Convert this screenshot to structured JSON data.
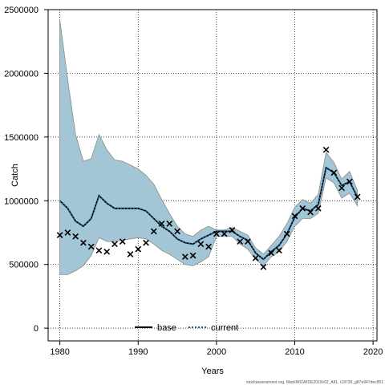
{
  "chart_data": {
    "type": "line",
    "title": "",
    "xlabel": "Years",
    "ylabel": "Catch",
    "xlim": [
      1978.5,
      2020.5
    ],
    "ylim": [
      -100000,
      2500000
    ],
    "x_ticks": [
      1980,
      1990,
      2000,
      2010,
      2020
    ],
    "x_tick_labels": [
      "1980",
      "1990",
      "2000",
      "2010",
      "2020"
    ],
    "y_ticks": [
      0,
      500000,
      1000000,
      1500000,
      2000000,
      2500000
    ],
    "y_tick_labels": [
      "0",
      "500000",
      "1000000",
      "1500000",
      "2000000",
      "2500000"
    ],
    "grid": true,
    "legend": {
      "placement": "bottom",
      "entries": [
        "base",
        "current"
      ]
    },
    "years": [
      1980,
      1981,
      1982,
      1983,
      1984,
      1985,
      1986,
      1987,
      1988,
      1989,
      1990,
      1991,
      1992,
      1993,
      1994,
      1995,
      1996,
      1997,
      1998,
      1999,
      2000,
      2001,
      2002,
      2003,
      2004,
      2005,
      2006,
      2007,
      2008,
      2009,
      2010,
      2011,
      2012,
      2013,
      2014,
      2015,
      2016,
      2017,
      2018
    ],
    "series": [
      {
        "name": "base",
        "color": "#000000",
        "line": "solid",
        "values": [
          1000000,
          940000,
          840000,
          800000,
          860000,
          1040000,
          980000,
          940000,
          940000,
          940000,
          940000,
          920000,
          860000,
          800000,
          760000,
          700000,
          670000,
          660000,
          700000,
          730000,
          760000,
          760000,
          760000,
          720000,
          690000,
          590000,
          540000,
          600000,
          650000,
          740000,
          870000,
          940000,
          920000,
          970000,
          1260000,
          1220000,
          1120000,
          1150000,
          1030000
        ]
      },
      {
        "name": "current",
        "color": "#1f5c8a",
        "line": "dotted",
        "values": [
          1000000,
          940000,
          840000,
          800000,
          860000,
          1040000,
          980000,
          940000,
          940000,
          940000,
          940000,
          920000,
          860000,
          800000,
          760000,
          700000,
          670000,
          660000,
          700000,
          730000,
          760000,
          760000,
          760000,
          720000,
          690000,
          590000,
          540000,
          600000,
          650000,
          740000,
          870000,
          940000,
          920000,
          970000,
          1260000,
          1220000,
          1120000,
          1150000,
          1030000
        ]
      }
    ],
    "interval": {
      "color": "#a3c6d6",
      "upper": [
        2420000,
        1950000,
        1520000,
        1310000,
        1330000,
        1520000,
        1400000,
        1320000,
        1310000,
        1280000,
        1250000,
        1200000,
        1130000,
        1010000,
        900000,
        800000,
        740000,
        720000,
        770000,
        800000,
        770000,
        770000,
        790000,
        760000,
        730000,
        630000,
        580000,
        650000,
        720000,
        820000,
        950000,
        1010000,
        980000,
        1050000,
        1380000,
        1300000,
        1170000,
        1230000,
        1080000
      ],
      "lower": [
        420000,
        420000,
        450000,
        490000,
        570000,
        710000,
        680000,
        680000,
        690000,
        700000,
        710000,
        700000,
        660000,
        610000,
        580000,
        540000,
        500000,
        490000,
        520000,
        560000,
        720000,
        720000,
        720000,
        660000,
        620000,
        540000,
        490000,
        560000,
        600000,
        680000,
        800000,
        860000,
        860000,
        900000,
        1180000,
        1140000,
        1020000,
        1060000,
        960000
      ]
    },
    "observed": {
      "marker": "x",
      "values": [
        730000,
        750000,
        720000,
        670000,
        640000,
        610000,
        600000,
        660000,
        680000,
        580000,
        620000,
        670000,
        760000,
        820000,
        820000,
        760000,
        560000,
        570000,
        660000,
        640000,
        740000,
        740000,
        770000,
        680000,
        680000,
        550000,
        480000,
        590000,
        610000,
        740000,
        880000,
        940000,
        910000,
        940000,
        1400000,
        1220000,
        1100000,
        1150000,
        1030000
      ]
    }
  },
  "footnote": "stockassessment.org, MackWGWIDE2019v02_Alt1, r18726_g87e947dec851"
}
